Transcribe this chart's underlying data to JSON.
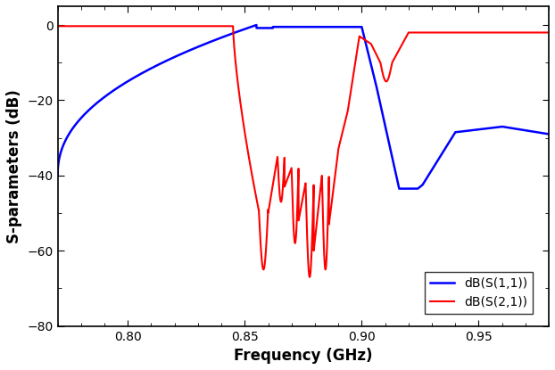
{
  "title": "",
  "xlabel": "Frequency (GHz)",
  "ylabel": "S-parameters (dB)",
  "xlim": [
    0.77,
    0.98
  ],
  "ylim": [
    -80,
    5
  ],
  "yticks": [
    0,
    -20,
    -40,
    -60,
    -80
  ],
  "xticks": [
    0.8,
    0.85,
    0.9,
    0.95
  ],
  "legend": [
    "dB(S(1,1))",
    "dB(S(2,1))"
  ],
  "blue_color": "#0000FF",
  "red_color": "#FF0000",
  "background": "#FFFFFF",
  "figsize": [
    6.22,
    4.15
  ],
  "dpi": 100
}
